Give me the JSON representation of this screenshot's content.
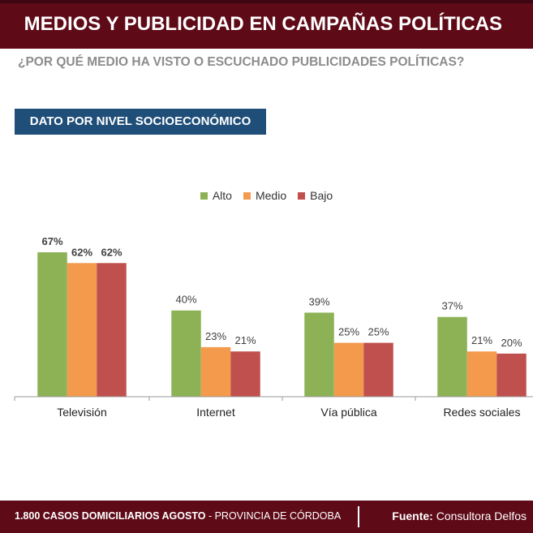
{
  "header": {
    "title": "MEDIOS Y PUBLICIDAD EN CAMPAÑAS POLÍTICAS"
  },
  "question": "¿POR QUÉ MEDIO HA VISTO O ESCUCHADO PUBLICIDADES POLÍTICAS?",
  "subtitle": "DATO POR NIVEL SOCIOECONÓMICO",
  "colors": {
    "alto": "#8db255",
    "medio": "#f39a4d",
    "bajo": "#c0504d",
    "brand": "#5e0a17",
    "accent": "#1f4e79"
  },
  "chart_data": {
    "type": "bar",
    "categories": [
      "Televisión",
      "Internet",
      "Vía pública",
      "Redes sociales"
    ],
    "series": [
      {
        "name": "Alto",
        "values": [
          67,
          40,
          39,
          37
        ]
      },
      {
        "name": "Medio",
        "values": [
          62,
          23,
          25,
          21
        ]
      },
      {
        "name": "Bajo",
        "values": [
          62,
          21,
          25,
          20
        ]
      }
    ],
    "value_labels": [
      [
        "67%",
        "62%",
        "62%"
      ],
      [
        "40%",
        "23%",
        "21%"
      ],
      [
        "39%",
        "25%",
        "25%"
      ],
      [
        "37%",
        "21%",
        "20%"
      ]
    ],
    "legend_position": "top-center",
    "ylim": [
      0,
      100
    ]
  },
  "footer": {
    "cases": "1.800",
    "cases_label": "CASOS DOMICILIARIOS AGOSTO",
    "region": " - PROVINCIA DE CÓRDOBA",
    "source_label": "Fuente:",
    "source": " Consultora Delfos"
  }
}
